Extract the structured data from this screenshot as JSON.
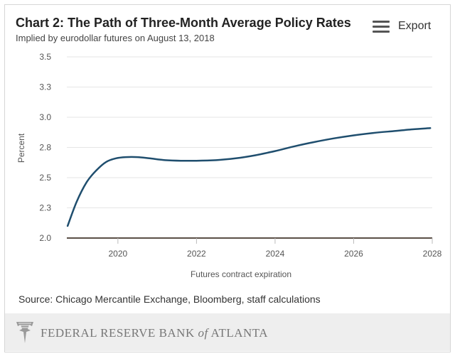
{
  "header": {
    "title": "Chart 2: The Path of Three-Month Average Policy Rates",
    "subtitle": "Implied by eurodollar futures on August 13, 2018",
    "export_label": "Export"
  },
  "chart_data": {
    "type": "line",
    "title": "Chart 2: The Path of Three-Month Average Policy Rates",
    "subtitle": "Implied by eurodollar futures on August 13, 2018",
    "xlabel": "Futures contract expiration",
    "ylabel": "Percent",
    "xlim": [
      2018.7,
      2028
    ],
    "ylim": [
      2.0,
      3.5
    ],
    "yticks": [
      2.0,
      2.25,
      2.5,
      2.75,
      3.0,
      3.25,
      3.5
    ],
    "ytick_labels": [
      "2.0",
      "2.3",
      "2.5",
      "2.8",
      "3.0",
      "3.3",
      "3.5"
    ],
    "xticks": [
      2020,
      2022,
      2024,
      2026,
      2028
    ],
    "xtick_labels": [
      "2020",
      "2022",
      "2024",
      "2026",
      "2028"
    ],
    "grid": true,
    "legend": "none",
    "series": [
      {
        "name": "Three-month average policy rate",
        "color": "#1f4e6e",
        "points": [
          [
            2018.72,
            2.1
          ],
          [
            2018.95,
            2.3
          ],
          [
            2019.2,
            2.46
          ],
          [
            2019.45,
            2.56
          ],
          [
            2019.7,
            2.63
          ],
          [
            2019.95,
            2.66
          ],
          [
            2020.2,
            2.67
          ],
          [
            2020.5,
            2.67
          ],
          [
            2020.8,
            2.66
          ],
          [
            2021.2,
            2.645
          ],
          [
            2021.6,
            2.64
          ],
          [
            2022.0,
            2.64
          ],
          [
            2022.5,
            2.645
          ],
          [
            2023.0,
            2.66
          ],
          [
            2023.5,
            2.685
          ],
          [
            2024.0,
            2.72
          ],
          [
            2024.5,
            2.76
          ],
          [
            2025.0,
            2.795
          ],
          [
            2025.5,
            2.825
          ],
          [
            2026.0,
            2.85
          ],
          [
            2026.5,
            2.87
          ],
          [
            2027.0,
            2.885
          ],
          [
            2027.5,
            2.9
          ],
          [
            2027.95,
            2.91
          ]
        ]
      }
    ]
  },
  "source_text": "Source: Chicago Mercantile Exchange, Bloomberg, staff calculations",
  "footer": {
    "logo_text_1": "FEDERAL RESERVE BANK ",
    "logo_text_of": "of",
    "logo_text_2": " ATLANTA"
  }
}
